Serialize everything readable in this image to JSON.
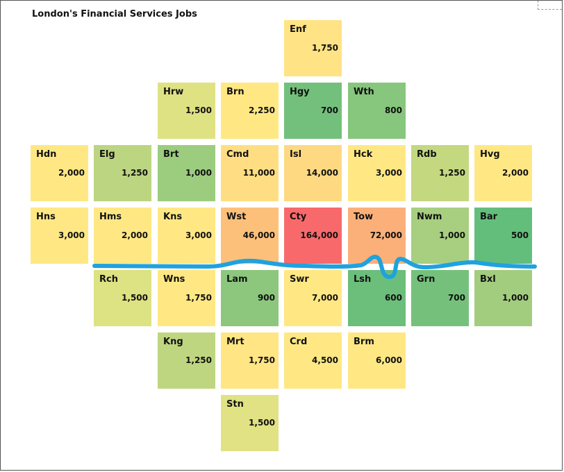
{
  "title": "London's Financial Services Jobs",
  "chart_data": {
    "type": "heatmap",
    "title": "London's Financial Services Jobs",
    "layout": "tile grid map of London boroughs",
    "color_scale": {
      "low": "#63be7b",
      "mid": "#ffeb84",
      "high": "#f8696b"
    },
    "boroughs": [
      {
        "code": "Enf",
        "value": 1750,
        "label": "1,750",
        "row": 0,
        "col": 4,
        "color": "#ffe384"
      },
      {
        "code": "Hrw",
        "value": 1500,
        "label": "1,500",
        "row": 1,
        "col": 2,
        "color": "#dfe283"
      },
      {
        "code": "Brn",
        "value": 2250,
        "label": "2,250",
        "row": 1,
        "col": 3,
        "color": "#ffe884"
      },
      {
        "code": "Hgy",
        "value": 700,
        "label": "700",
        "row": 1,
        "col": 4,
        "color": "#73c07c"
      },
      {
        "code": "Wth",
        "value": 800,
        "label": "800",
        "row": 1,
        "col": 5,
        "color": "#87c67d"
      },
      {
        "code": "Hdn",
        "value": 2000,
        "label": "2,000",
        "row": 2,
        "col": 0,
        "color": "#ffe884"
      },
      {
        "code": "Elg",
        "value": 1250,
        "label": "1,250",
        "row": 2,
        "col": 1,
        "color": "#bcd580"
      },
      {
        "code": "Brt",
        "value": 1000,
        "label": "1,000",
        "row": 2,
        "col": 2,
        "color": "#9ccc7e"
      },
      {
        "code": "Cmd",
        "value": 11000,
        "label": "11,000",
        "row": 2,
        "col": 3,
        "color": "#ffde83"
      },
      {
        "code": "Isl",
        "value": 14000,
        "label": "14,000",
        "row": 2,
        "col": 4,
        "color": "#fed981"
      },
      {
        "code": "Hck",
        "value": 3000,
        "label": "3,000",
        "row": 2,
        "col": 5,
        "color": "#ffe884"
      },
      {
        "code": "Rdb",
        "value": 1250,
        "label": "1,250",
        "row": 2,
        "col": 6,
        "color": "#c4d880"
      },
      {
        "code": "Hvg",
        "value": 2000,
        "label": "2,000",
        "row": 2,
        "col": 7,
        "color": "#ffe884"
      },
      {
        "code": "Hns",
        "value": 3000,
        "label": "3,000",
        "row": 3,
        "col": 0,
        "color": "#ffe884"
      },
      {
        "code": "Hms",
        "value": 2000,
        "label": "2,000",
        "row": 3,
        "col": 1,
        "color": "#ffe884"
      },
      {
        "code": "Kns",
        "value": 3000,
        "label": "3,000",
        "row": 3,
        "col": 2,
        "color": "#ffe884"
      },
      {
        "code": "Wst",
        "value": 46000,
        "label": "46,000",
        "row": 3,
        "col": 3,
        "color": "#fcc07b"
      },
      {
        "code": "Cty",
        "value": 164000,
        "label": "164,000",
        "row": 3,
        "col": 4,
        "color": "#f8696b"
      },
      {
        "code": "Tow",
        "value": 72000,
        "label": "72,000",
        "row": 3,
        "col": 5,
        "color": "#fbb079"
      },
      {
        "code": "Nwm",
        "value": 1000,
        "label": "1,000",
        "row": 3,
        "col": 6,
        "color": "#a7cf7f"
      },
      {
        "code": "Bar",
        "value": 500,
        "label": "500",
        "row": 3,
        "col": 7,
        "color": "#63be7b"
      },
      {
        "code": "Rch",
        "value": 1500,
        "label": "1,500",
        "row": 4,
        "col": 1,
        "color": "#dde282"
      },
      {
        "code": "Wns",
        "value": 1750,
        "label": "1,750",
        "row": 4,
        "col": 2,
        "color": "#ffe884"
      },
      {
        "code": "Lam",
        "value": 900,
        "label": "900",
        "row": 4,
        "col": 3,
        "color": "#8dc77d"
      },
      {
        "code": "Swr",
        "value": 7000,
        "label": "7,000",
        "row": 4,
        "col": 4,
        "color": "#ffe884"
      },
      {
        "code": "Lsh",
        "value": 600,
        "label": "600",
        "row": 4,
        "col": 5,
        "color": "#6cbe7b"
      },
      {
        "code": "Grn",
        "value": 700,
        "label": "700",
        "row": 4,
        "col": 6,
        "color": "#75c17c"
      },
      {
        "code": "Bxl",
        "value": 1000,
        "label": "1,000",
        "row": 4,
        "col": 7,
        "color": "#a3cd7e"
      },
      {
        "code": "Kng",
        "value": 1250,
        "label": "1,250",
        "row": 5,
        "col": 2,
        "color": "#bfd680"
      },
      {
        "code": "Mrt",
        "value": 1750,
        "label": "1,750",
        "row": 5,
        "col": 3,
        "color": "#ffe584"
      },
      {
        "code": "Crd",
        "value": 4500,
        "label": "4,500",
        "row": 5,
        "col": 4,
        "color": "#ffe884"
      },
      {
        "code": "Brm",
        "value": 6000,
        "label": "6,000",
        "row": 5,
        "col": 5,
        "color": "#ffe884"
      },
      {
        "code": "Stn",
        "value": 1500,
        "label": "1,500",
        "row": 6,
        "col": 3,
        "color": "#e0e283"
      }
    ],
    "annotations": [
      {
        "type": "river",
        "name": "",
        "color": "#1fa2de"
      }
    ]
  }
}
